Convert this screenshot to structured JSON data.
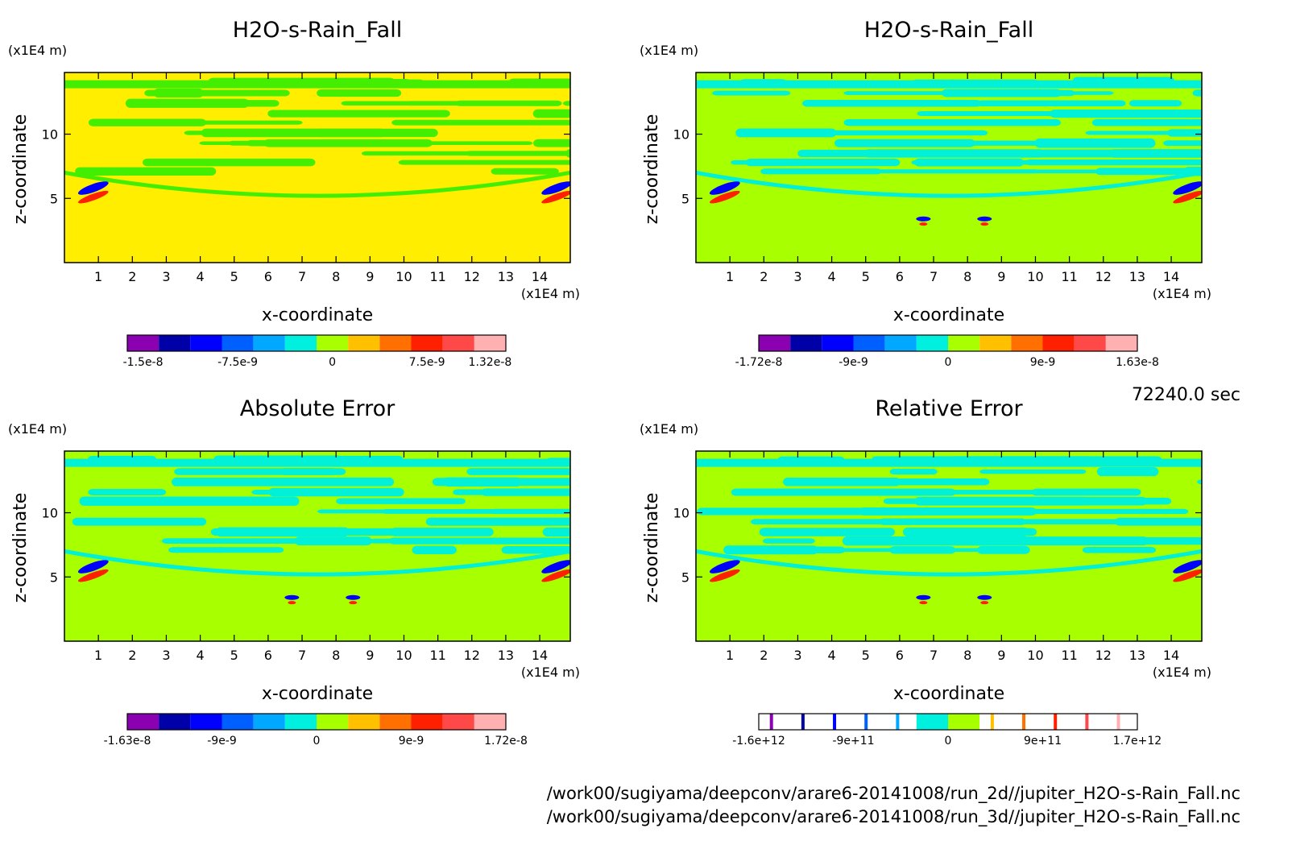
{
  "figure": {
    "time_label": "72240.0 sec",
    "file_paths": [
      "/work00/sugiyama/deepconv/arare6-20141008/run_2d//jupiter_H2O-s-Rain_Fall.nc",
      "/work00/sugiyama/deepconv/arare6-20141008/run_3d//jupiter_H2O-s-Rain_Fall.nc"
    ],
    "palette": [
      "#8b00b0",
      "#0000a8",
      "#0000ff",
      "#0060ff",
      "#00a8ff",
      "#00f0e0",
      "#a8ff00",
      "#ffc000",
      "#ff7000",
      "#ff2000",
      "#ff4848",
      "#ffb0b0"
    ],
    "field_colors": {
      "background_panel1": "#ffee00",
      "band_panel1": "#44ee00",
      "background": "#a8ff00",
      "band": "#00f0d8"
    }
  },
  "chart_data": [
    {
      "type": "heatmap",
      "title": "H2O-s-Rain_Fall",
      "xlabel": "x-coordinate",
      "ylabel": "z-coordinate",
      "x_unit": "(x1E4 m)",
      "y_unit": "(x1E4 m)",
      "xlim": [
        0,
        14.9
      ],
      "ylim": [
        0,
        14.8
      ],
      "xticks": [
        "1",
        "2",
        "3",
        "4",
        "5",
        "6",
        "7",
        "8",
        "9",
        "10",
        "11",
        "12",
        "13",
        "14"
      ],
      "yticks": [
        "5",
        "10"
      ],
      "colorbar": {
        "levels": 12,
        "labels": [
          "-1.5e-8",
          "-7.5e-9",
          "0",
          "7.5e-9",
          "1.32e-8"
        ],
        "label_positions": [
          0.5,
          3.5,
          6.5,
          9.5,
          11.5
        ]
      }
    },
    {
      "type": "heatmap",
      "title": "H2O-s-Rain_Fall",
      "xlabel": "x-coordinate",
      "ylabel": "z-coordinate",
      "x_unit": "(x1E4 m)",
      "y_unit": "(x1E4 m)",
      "xlim": [
        0,
        14.9
      ],
      "ylim": [
        0,
        14.8
      ],
      "xticks": [
        "1",
        "2",
        "3",
        "4",
        "5",
        "6",
        "7",
        "8",
        "9",
        "10",
        "11",
        "12",
        "13",
        "14"
      ],
      "yticks": [
        "5",
        "10"
      ],
      "colorbar": {
        "levels": 12,
        "labels": [
          "-1.72e-8",
          "-9e-9",
          "0",
          "9e-9",
          "1.63e-8"
        ],
        "label_positions": [
          0.0,
          3.0,
          6.0,
          9.0,
          12.0
        ]
      }
    },
    {
      "type": "heatmap",
      "title": "Absolute Error",
      "xlabel": "x-coordinate",
      "ylabel": "z-coordinate",
      "x_unit": "(x1E4 m)",
      "y_unit": "(x1E4 m)",
      "xlim": [
        0,
        14.9
      ],
      "ylim": [
        0,
        14.8
      ],
      "xticks": [
        "1",
        "2",
        "3",
        "4",
        "5",
        "6",
        "7",
        "8",
        "9",
        "10",
        "11",
        "12",
        "13",
        "14"
      ],
      "yticks": [
        "5",
        "10"
      ],
      "colorbar": {
        "levels": 12,
        "labels": [
          "-1.63e-8",
          "-9e-9",
          "0",
          "9e-9",
          "1.72e-8"
        ],
        "label_positions": [
          0.0,
          3.0,
          6.0,
          9.0,
          12.0
        ]
      }
    },
    {
      "type": "heatmap",
      "title": "Relative Error",
      "xlabel": "x-coordinate",
      "ylabel": "z-coordinate",
      "x_unit": "(x1E4 m)",
      "y_unit": "(x1E4 m)",
      "xlim": [
        0,
        14.9
      ],
      "ylim": [
        0,
        14.8
      ],
      "xticks": [
        "1",
        "2",
        "3",
        "4",
        "5",
        "6",
        "7",
        "8",
        "9",
        "10",
        "11",
        "12",
        "13",
        "14"
      ],
      "yticks": [
        "5",
        "10"
      ],
      "colorbar": {
        "levels": 12,
        "sparse": true,
        "labels": [
          "-1.6e+12",
          "-9e+11",
          "0",
          "9e+11",
          "1.7e+12"
        ],
        "label_positions": [
          0.0,
          3.0,
          6.0,
          9.0,
          12.0
        ]
      }
    }
  ]
}
